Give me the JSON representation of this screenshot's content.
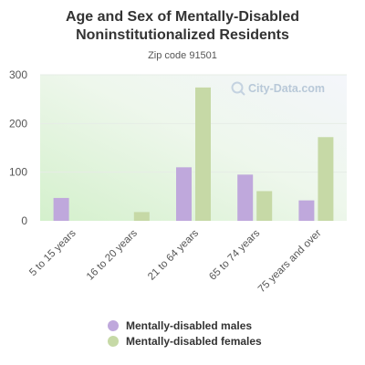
{
  "chart_data": {
    "type": "bar",
    "title": "Age and Sex of Mentally-Disabled Noninstitutionalized Residents",
    "subtitle": "Zip code 91501",
    "categories": [
      "5 to 15 years",
      "16 to 20 years",
      "21 to 64 years",
      "65 to 74 years",
      "75 years and over"
    ],
    "series": [
      {
        "name": "Mentally-disabled males",
        "color": "#bfa8dc",
        "values": [
          47,
          0,
          110,
          95,
          42
        ]
      },
      {
        "name": "Mentally-disabled females",
        "color": "#c6d9a6",
        "values": [
          0,
          18,
          274,
          61,
          172
        ]
      }
    ],
    "ylim": [
      0,
      300
    ],
    "yticks": [
      0,
      100,
      200,
      300
    ],
    "grid": true,
    "legend_position": "bottom",
    "xlabel": "",
    "ylabel": ""
  },
  "watermark": {
    "text": "City-Data.com",
    "icon": "magnifier-icon"
  }
}
